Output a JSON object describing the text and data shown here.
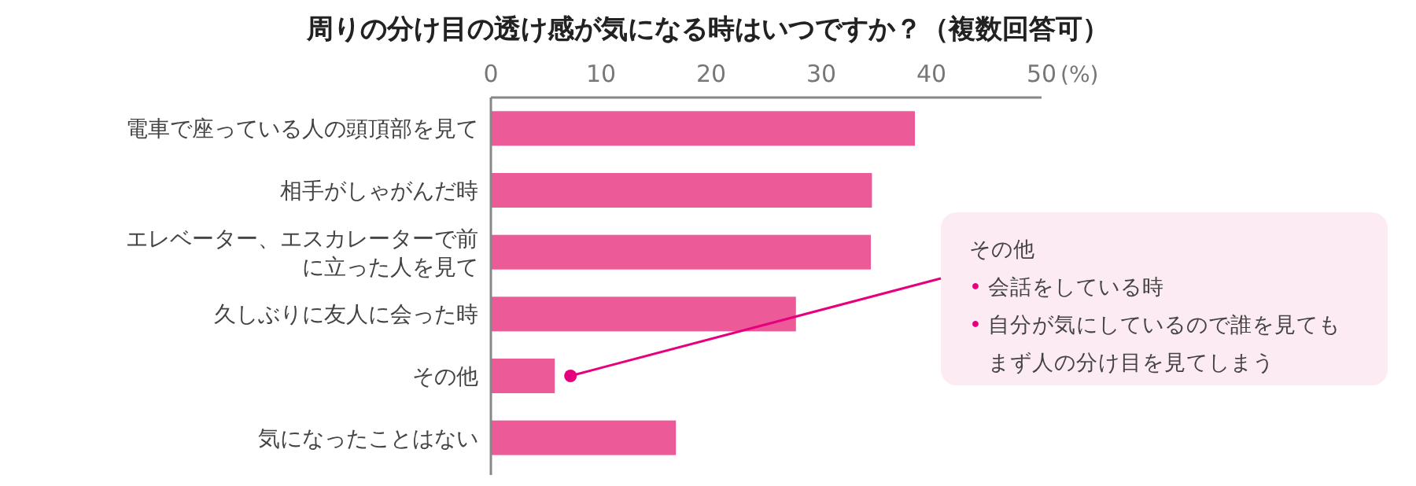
{
  "chart_data": {
    "type": "bar",
    "orientation": "horizontal",
    "title": "周りの分け目の透け感が気になる時はいつですか？（複数回答可）",
    "xlabel": "(%)",
    "categories": [
      "電車で座っている人の頭頂部を見て",
      "相手がしゃがんだ時",
      "エレベーター、エスカレーターで前に立った人を見て",
      "久しぶりに友人に会った時",
      "その他",
      "気になったことはない"
    ],
    "values": [
      38.5,
      34.6,
      34.5,
      27.7,
      5.8,
      16.8
    ],
    "color": "#ec5a98",
    "xlim": [
      0,
      50
    ],
    "xticks": [
      0,
      10,
      20,
      30,
      40,
      50
    ],
    "annotations": [
      "その他",
      "• 会話をしている時",
      "• 自分が気にしているので誰を見てもまず人の分け目を見てしまう"
    ]
  }
}
